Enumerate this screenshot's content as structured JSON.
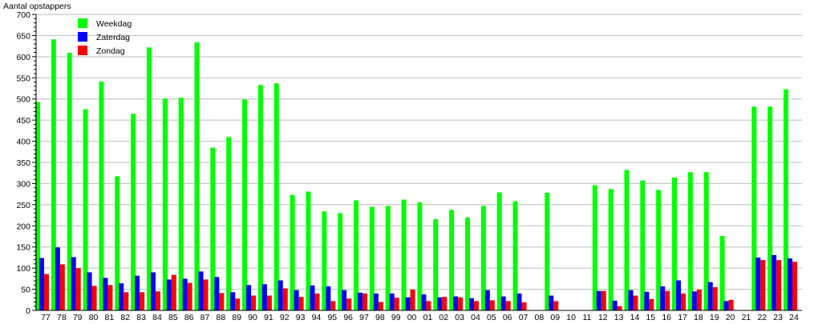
{
  "chart_data": {
    "type": "bar",
    "title": "",
    "ylabel": "Aantal opstappers",
    "xlabel": "",
    "ylim": [
      0,
      700
    ],
    "ytick_step": 50,
    "grid": true,
    "legend_position": "top-left",
    "categories": [
      "77",
      "78",
      "79",
      "80",
      "81",
      "82",
      "83",
      "84",
      "85",
      "86",
      "87",
      "88",
      "89",
      "90",
      "91",
      "92",
      "93",
      "94",
      "95",
      "96",
      "97",
      "98",
      "99",
      "00",
      "01",
      "02",
      "03",
      "04",
      "05",
      "06",
      "07",
      "08",
      "09",
      "10",
      "11",
      "12",
      "13",
      "14",
      "15",
      "16",
      "17",
      "18",
      "19",
      "20",
      "21",
      "22",
      "23",
      "24"
    ],
    "series": [
      {
        "name": "Weekdag",
        "color": "#00ff00",
        "values": [
          493,
          641,
          609,
          476,
          541,
          317,
          465,
          622,
          501,
          503,
          634,
          385,
          410,
          499,
          533,
          537,
          273,
          281,
          234,
          230,
          260,
          245,
          247,
          262,
          256,
          216,
          238,
          220,
          247,
          279,
          258,
          null,
          278,
          null,
          null,
          296,
          287,
          332,
          307,
          285,
          314,
          327,
          327,
          176,
          null,
          482,
          482,
          523
        ]
      },
      {
        "name": "Zaterdag",
        "color": "#0000ff",
        "values": [
          124,
          149,
          126,
          90,
          77,
          64,
          82,
          90,
          73,
          75,
          92,
          79,
          43,
          60,
          62,
          71,
          48,
          59,
          57,
          48,
          42,
          40,
          40,
          31,
          38,
          31,
          33,
          29,
          48,
          33,
          40,
          null,
          35,
          null,
          null,
          46,
          23,
          48,
          44,
          57,
          71,
          45,
          67,
          22,
          null,
          125,
          131,
          123
        ]
      },
      {
        "name": "Zondag",
        "color": "#ff0000",
        "values": [
          86,
          109,
          100,
          58,
          60,
          43,
          43,
          45,
          84,
          65,
          73,
          41,
          28,
          35,
          35,
          52,
          32,
          40,
          22,
          28,
          40,
          20,
          30,
          49,
          22,
          32,
          31,
          22,
          24,
          22,
          19,
          null,
          22,
          null,
          null,
          46,
          10,
          35,
          27,
          46,
          40,
          49,
          55,
          25,
          null,
          119,
          119,
          115
        ]
      }
    ]
  }
}
